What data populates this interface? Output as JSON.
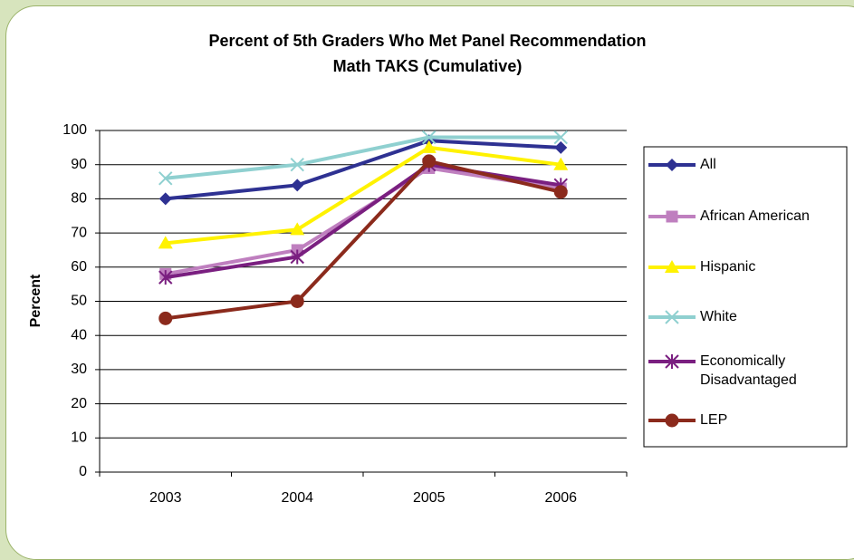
{
  "chart_data": {
    "type": "line",
    "title": "Percent of 5th Graders Who Met Panel Recommendation",
    "subtitle": "Math TAKS (Cumulative)",
    "ylabel": "Percent",
    "categories": [
      "2003",
      "2004",
      "2005",
      "2006"
    ],
    "ylim": [
      0,
      100
    ],
    "yticks": [
      0,
      10,
      20,
      30,
      40,
      50,
      60,
      70,
      80,
      90,
      100
    ],
    "grid": true,
    "legend": "right",
    "series": [
      {
        "name": "All",
        "color": "#2e3192",
        "marker": "diamond",
        "values": [
          80,
          84,
          97,
          95
        ]
      },
      {
        "name": "African American",
        "color": "#bf7fbf",
        "marker": "square",
        "values": [
          58,
          65,
          89,
          83
        ]
      },
      {
        "name": "Hispanic",
        "color": "#fff200",
        "marker": "triangle",
        "values": [
          67,
          71,
          95,
          90
        ]
      },
      {
        "name": "White",
        "color": "#8fd0d0",
        "marker": "x",
        "values": [
          86,
          90,
          98,
          98
        ]
      },
      {
        "name": "Economically Disadvantaged",
        "color": "#7a1f80",
        "marker": "star",
        "values": [
          57,
          63,
          90,
          84
        ]
      },
      {
        "name": "LEP",
        "color": "#8b2a1c",
        "marker": "circle",
        "values": [
          45,
          50,
          91,
          82
        ]
      }
    ]
  }
}
